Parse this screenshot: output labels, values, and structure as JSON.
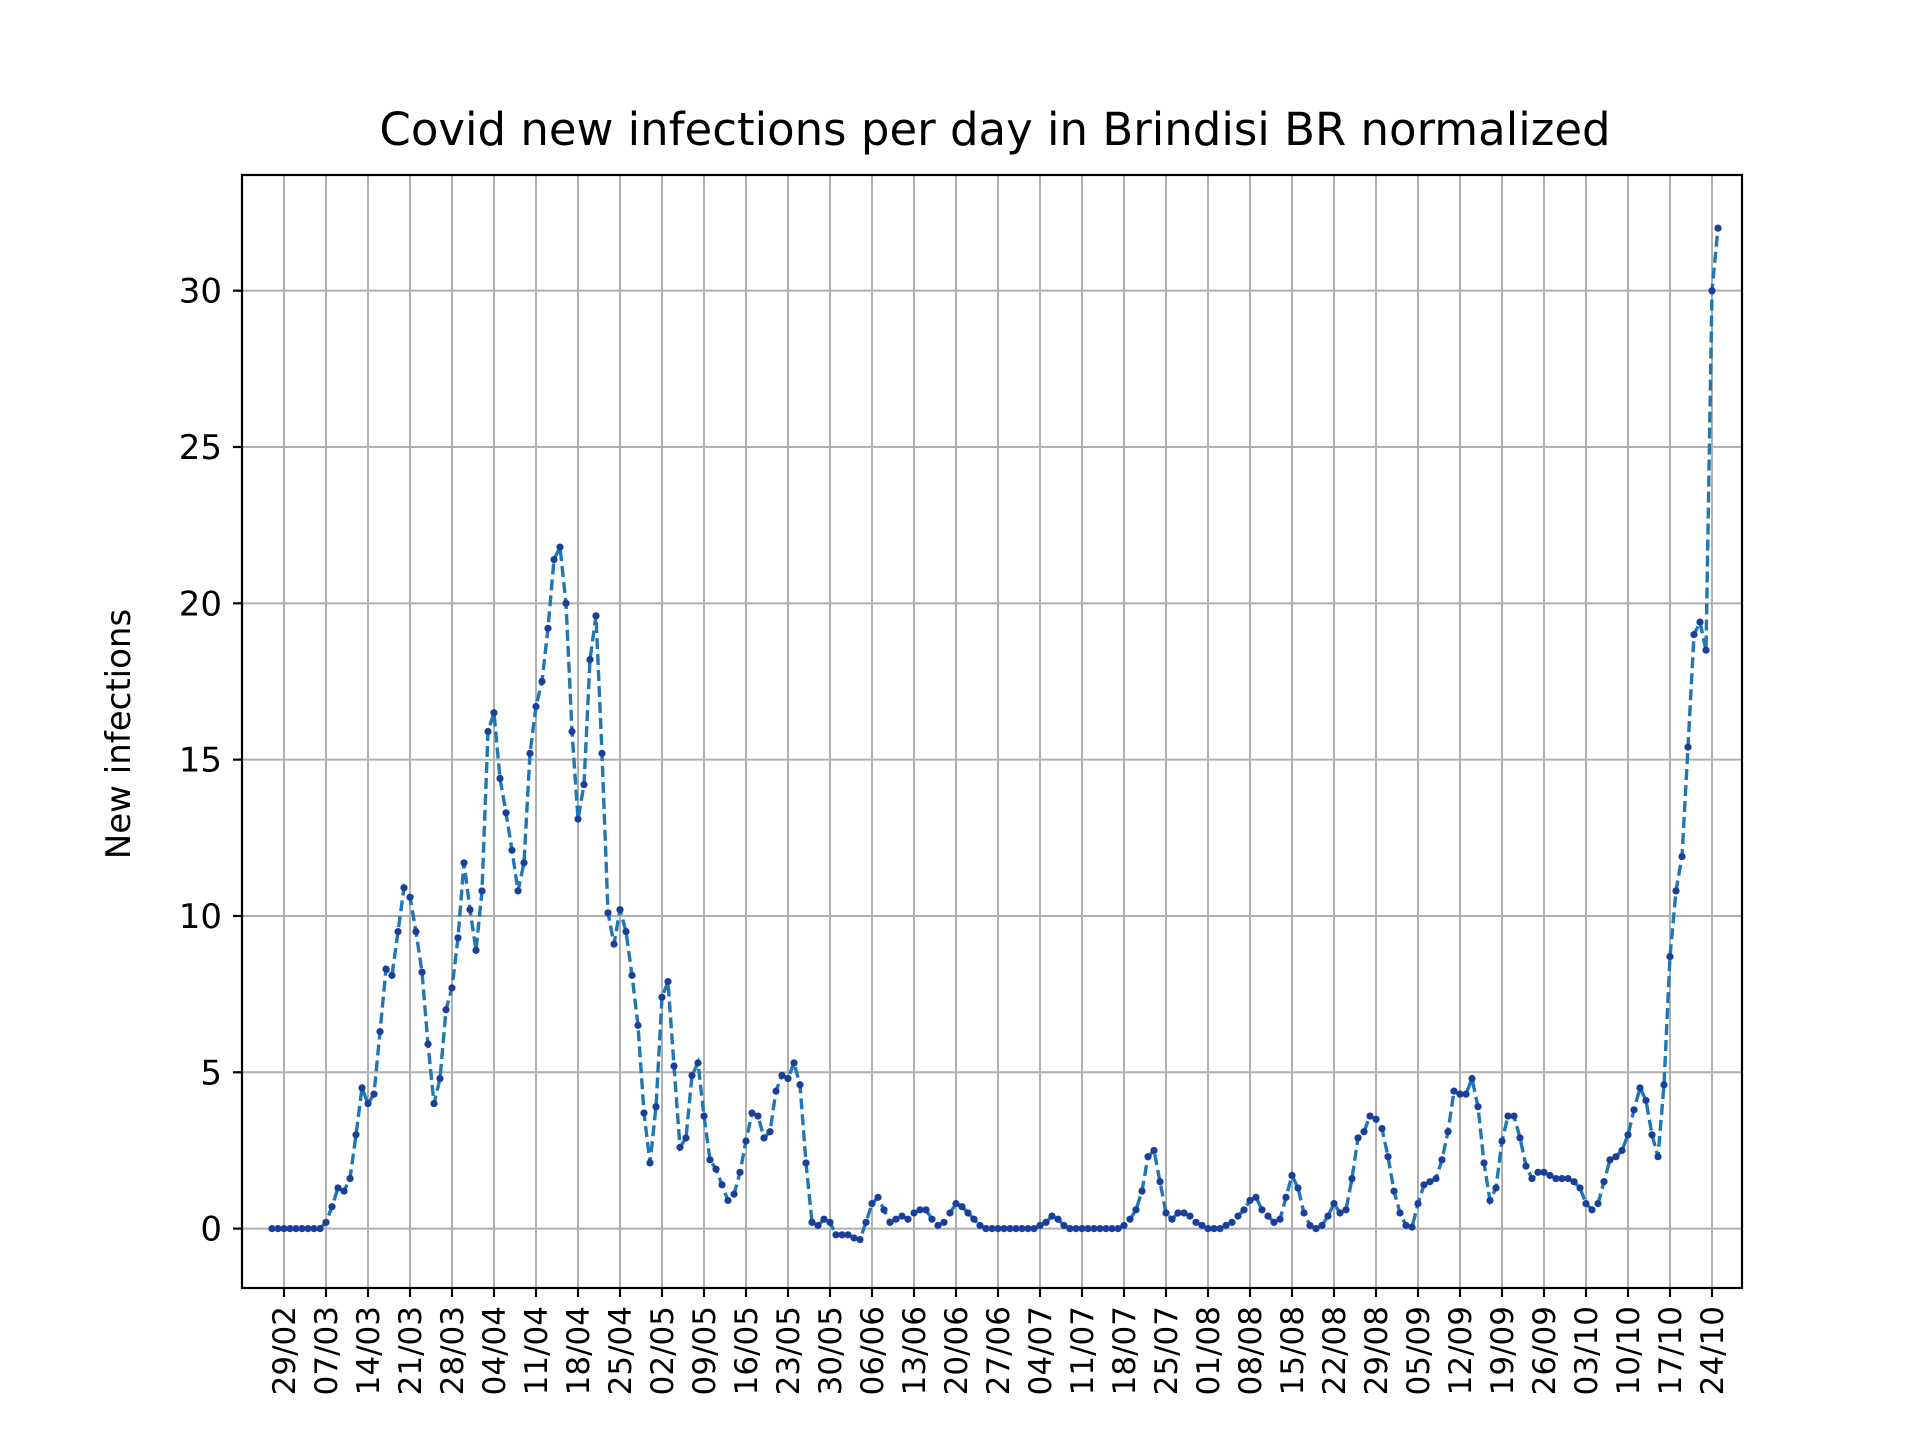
{
  "chart_data": {
    "type": "line",
    "title": "Covid new infections per day in Brindisi BR normalized",
    "xlabel": "",
    "ylabel": "New infections",
    "ylim": [
      -1.9,
      33.7
    ],
    "yticks": [
      0,
      5,
      10,
      15,
      20,
      25,
      30
    ],
    "xlim_dates": [
      "2020-02-22",
      "2020-10-29"
    ],
    "xtick_labels": [
      "29/02",
      "07/03",
      "14/03",
      "21/03",
      "28/03",
      "04/04",
      "11/04",
      "18/04",
      "25/04",
      "02/05",
      "09/05",
      "16/05",
      "23/05",
      "30/05",
      "06/06",
      "13/06",
      "20/06",
      "27/06",
      "04/07",
      "11/07",
      "18/07",
      "25/07",
      "01/08",
      "08/08",
      "15/08",
      "22/08",
      "29/08",
      "05/09",
      "12/09",
      "19/09",
      "26/09",
      "03/10",
      "10/10",
      "17/10",
      "24/10"
    ],
    "xtick_dates": [
      "2020-02-29",
      "2020-03-07",
      "2020-03-14",
      "2020-03-21",
      "2020-03-28",
      "2020-04-04",
      "2020-04-11",
      "2020-04-18",
      "2020-04-25",
      "2020-05-02",
      "2020-05-09",
      "2020-05-16",
      "2020-05-23",
      "2020-05-30",
      "2020-06-06",
      "2020-06-13",
      "2020-06-20",
      "2020-06-27",
      "2020-07-04",
      "2020-07-11",
      "2020-07-18",
      "2020-07-25",
      "2020-08-01",
      "2020-08-08",
      "2020-08-15",
      "2020-08-22",
      "2020-08-29",
      "2020-09-05",
      "2020-09-12",
      "2020-09-19",
      "2020-09-26",
      "2020-10-03",
      "2020-10-10",
      "2020-10-17",
      "2020-10-24"
    ],
    "grid": true,
    "series": [
      {
        "color": "#1f77b4",
        "marker_color": "#1a3f9a",
        "line_style": "dashed",
        "marker": "dot",
        "x_start": "2020-02-27",
        "x_end": "2020-10-24",
        "x_step": "1 day",
        "values": [
          0,
          0,
          0,
          0,
          0,
          0,
          0,
          0,
          0,
          0.2,
          0.7,
          1.3,
          1.2,
          1.6,
          3,
          4.5,
          4,
          4.3,
          6.3,
          8.3,
          8.1,
          9.5,
          10.9,
          10.6,
          9.5,
          8.2,
          5.9,
          4,
          4.8,
          7,
          7.7,
          9.3,
          11.7,
          10.2,
          8.9,
          10.8,
          15.9,
          16.5,
          14.4,
          13.3,
          12.1,
          10.8,
          11.7,
          15.2,
          16.7,
          17.5,
          19.2,
          21.4,
          21.8,
          20,
          15.9,
          13.1,
          14.2,
          18.2,
          19.6,
          15.2,
          10.1,
          9.1,
          10.2,
          9.5,
          8.1,
          6.5,
          3.7,
          2.1,
          3.9,
          7.4,
          7.9,
          5.2,
          2.6,
          2.9,
          4.9,
          5.3,
          3.6,
          2.2,
          1.9,
          1.4,
          0.9,
          1.1,
          1.8,
          2.8,
          3.7,
          3.6,
          2.9,
          3.1,
          4.4,
          4.9,
          4.8,
          5.3,
          4.6,
          2.1,
          0.2,
          0.1,
          0.3,
          0.2,
          -0.2,
          -0.2,
          -0.2,
          -0.3,
          -0.35,
          0.2,
          0.8,
          1,
          0.6,
          0.2,
          0.3,
          0.4,
          0.3,
          0.5,
          0.6,
          0.6,
          0.3,
          0.1,
          0.2,
          0.5,
          0.8,
          0.7,
          0.5,
          0.3,
          0.1,
          0,
          0,
          0,
          0,
          0,
          0,
          0,
          0,
          0,
          0.1,
          0.2,
          0.4,
          0.3,
          0.1,
          0,
          0,
          0,
          0,
          0,
          0,
          0,
          0,
          0,
          0.1,
          0.3,
          0.6,
          1.2,
          2.3,
          2.5,
          1.5,
          0.5,
          0.3,
          0.5,
          0.5,
          0.4,
          0.2,
          0.1,
          0,
          0,
          0,
          0.1,
          0.2,
          0.4,
          0.6,
          0.9,
          1,
          0.6,
          0.4,
          0.2,
          0.3,
          1,
          1.7,
          1.3,
          0.5,
          0.1,
          0,
          0.1,
          0.4,
          0.8,
          0.5,
          0.6,
          1.6,
          2.9,
          3.1,
          3.6,
          3.5,
          3.2,
          2.3,
          1.2,
          0.5,
          0.1,
          0.05,
          0.8,
          1.4,
          1.5,
          1.6,
          2.2,
          3.1,
          4.4,
          4.3,
          4.3,
          4.8,
          3.9,
          2.1,
          0.9,
          1.3,
          2.8,
          3.6,
          3.6,
          2.9,
          2,
          1.6,
          1.8,
          1.8,
          1.7,
          1.6,
          1.6,
          1.6,
          1.5,
          1.3,
          0.8,
          0.6,
          0.8,
          1.5,
          2.2,
          2.3,
          2.5,
          3,
          3.8,
          4.5,
          4.1,
          3,
          2.3,
          4.6,
          8.7,
          10.8,
          11.9,
          15.4,
          19,
          19.4,
          18.5,
          30,
          32
        ]
      }
    ]
  }
}
